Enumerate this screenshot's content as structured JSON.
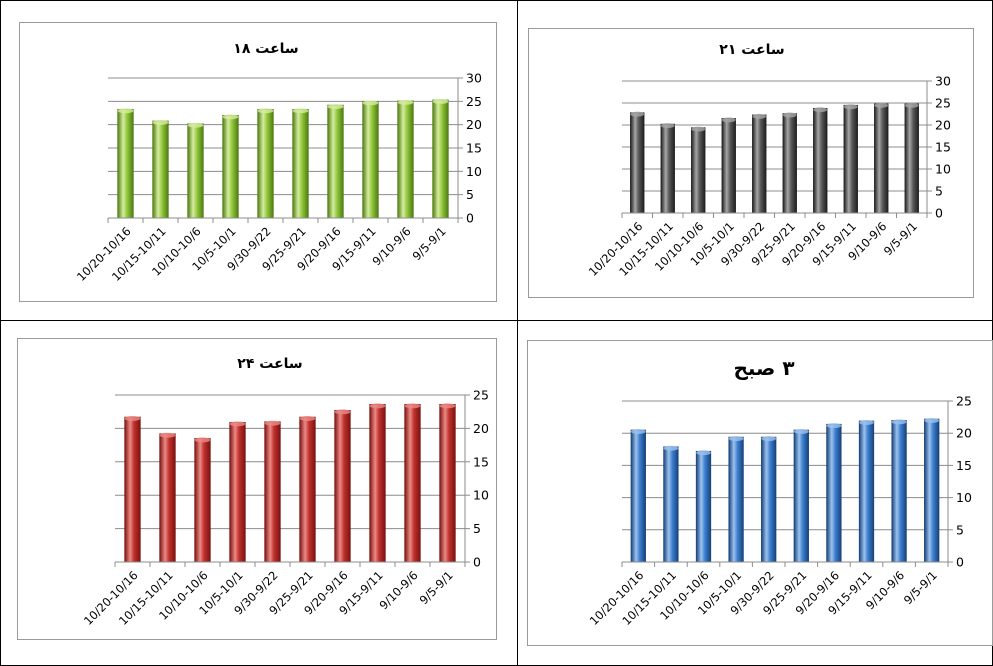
{
  "chart_data": [
    {
      "type": "bar",
      "title": "ساعت ۱۸",
      "categories": [
        "10/20-10/16",
        "10/15-10/11",
        "10/10-10/6",
        "10/5-10/1",
        "9/30-9/22",
        "9/25-9/21",
        "9/20-9/16",
        "9/15-9/11",
        "9/10-9/6",
        "9/5-9/1"
      ],
      "values": [
        23.3,
        20.8,
        20.2,
        22.0,
        23.3,
        23.3,
        24.2,
        25.0,
        25.1,
        25.3
      ],
      "yticks": [
        "0",
        "5",
        "10",
        "15",
        "20",
        "25",
        "30"
      ],
      "ylim": [
        0,
        30
      ],
      "y_axis_side": "right",
      "grid": true,
      "color": "#92c83c",
      "edge": "#4d7b10",
      "highlight": "#d6eca0"
    },
    {
      "type": "bar",
      "title": "ساعت ۲۱",
      "categories": [
        "10/20-10/16",
        "10/15-10/11",
        "10/10-10/6",
        "10/5-10/1",
        "9/30-9/22",
        "9/25-9/21",
        "9/20-9/16",
        "9/15-9/11",
        "9/10-9/6",
        "9/5-9/1"
      ],
      "values": [
        22.8,
        20.2,
        19.4,
        21.5,
        22.3,
        22.6,
        23.8,
        24.5,
        24.8,
        24.8
      ],
      "yticks": [
        "0",
        "5",
        "10",
        "15",
        "20",
        "25",
        "30"
      ],
      "ylim": [
        0,
        30
      ],
      "y_axis_side": "right",
      "grid": true,
      "color": "#595959",
      "edge": "#1f1f1f",
      "highlight": "#a6a6a6"
    },
    {
      "type": "bar",
      "title": "ساعت ۲۴",
      "categories": [
        "10/20-10/16",
        "10/15-10/11",
        "10/10-10/6",
        "10/5-10/1",
        "9/30-9/22",
        "9/25-9/21",
        "9/20-9/16",
        "9/15-9/11",
        "9/10-9/6",
        "9/5-9/1"
      ],
      "values": [
        21.7,
        19.2,
        18.5,
        20.9,
        21.0,
        21.7,
        22.7,
        23.6,
        23.6,
        23.6
      ],
      "yticks": [
        "0",
        "5",
        "10",
        "15",
        "20",
        "25"
      ],
      "ylim": [
        0,
        25
      ],
      "y_axis_side": "right",
      "grid": true,
      "color": "#c0302d",
      "edge": "#7a1310",
      "highlight": "#ec8a86"
    },
    {
      "type": "bar",
      "title": "۳ صبح",
      "categories": [
        "10/20-10/16",
        "10/15-10/11",
        "10/10-10/6",
        "10/5-10/1",
        "9/30-9/22",
        "9/25-9/21",
        "9/20-9/16",
        "9/15-9/11",
        "9/10-9/6",
        "9/5-9/1"
      ],
      "values": [
        20.5,
        17.9,
        17.2,
        19.4,
        19.4,
        20.5,
        21.4,
        21.9,
        22.0,
        22.2
      ],
      "yticks": [
        "0",
        "5",
        "10",
        "15",
        "20",
        "25"
      ],
      "ylim": [
        0,
        25
      ],
      "y_axis_side": "right",
      "grid": true,
      "color": "#3c7fcf",
      "edge": "#17427a",
      "highlight": "#9cc2ee"
    }
  ]
}
